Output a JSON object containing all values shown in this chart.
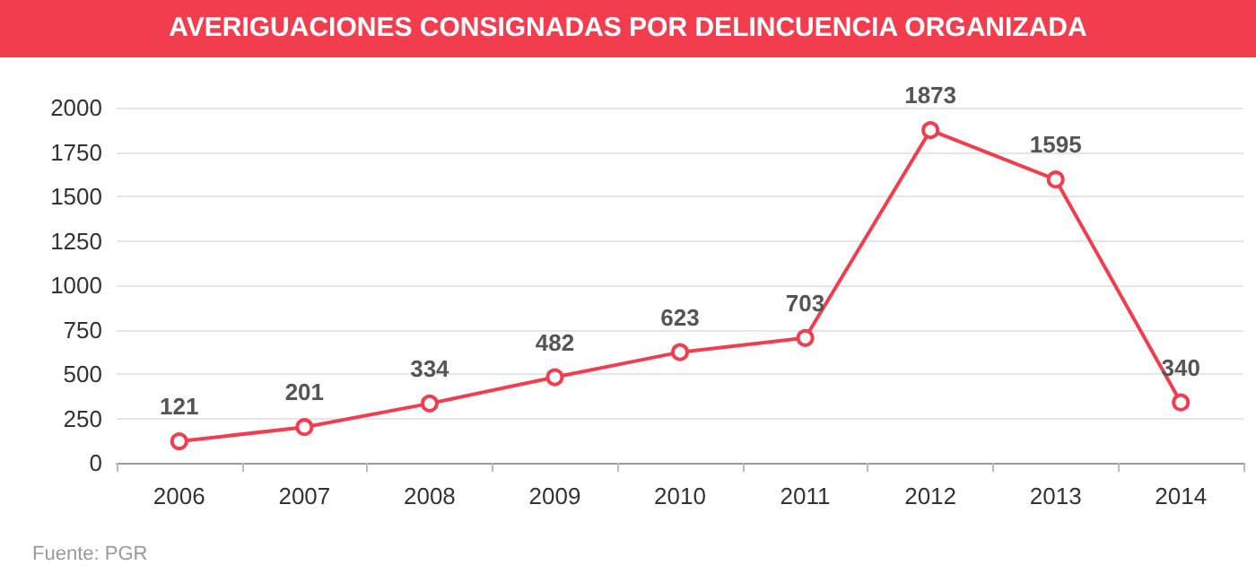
{
  "chart_data": {
    "type": "line",
    "title": "AVERIGUACIONES CONSIGNADAS POR DELINCUENCIA ORGANIZADA",
    "categories": [
      "2006",
      "2007",
      "2008",
      "2009",
      "2010",
      "2011",
      "2012",
      "2013",
      "2014"
    ],
    "series": [
      {
        "color": "#f23d4f",
        "values": [
          121,
          201,
          334,
          482,
          623,
          703,
          1873,
          1595,
          340
        ]
      }
    ],
    "ylim": [
      0,
      2000
    ],
    "yticks": [
      0,
      250,
      500,
      750,
      1000,
      1250,
      1500,
      1750,
      2000
    ],
    "grid": "y",
    "marker": "circle",
    "line_style": "solid",
    "data_labels": true,
    "annotations": [
      "Fuente: PGR"
    ]
  }
}
